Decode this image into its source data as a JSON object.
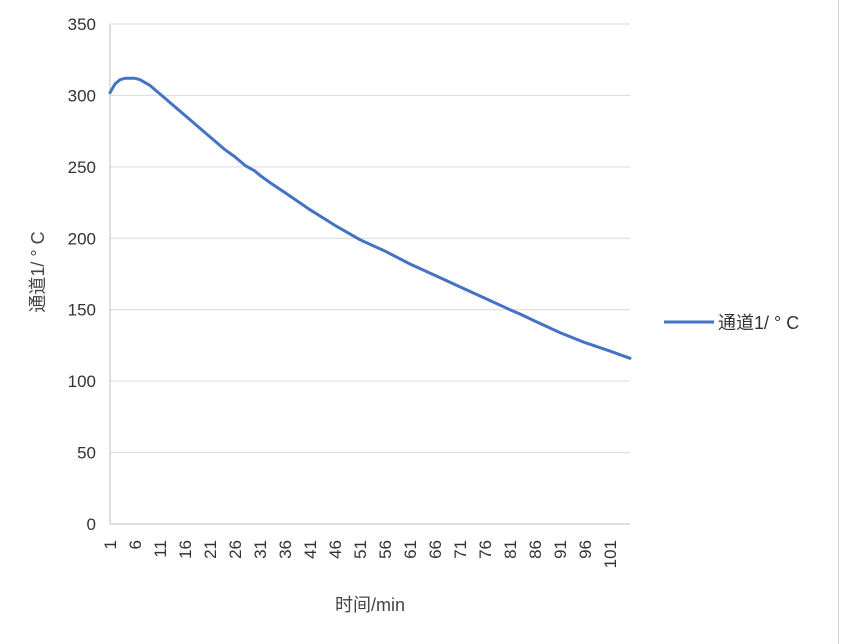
{
  "chart_data": {
    "type": "line",
    "xlabel": "时间/min",
    "ylabel": "通道1/ ° C",
    "ylim": [
      0,
      350
    ],
    "yticks": [
      0,
      50,
      100,
      150,
      200,
      250,
      300,
      350
    ],
    "x_first": 1,
    "x_last": 105,
    "xtick_labels": [
      "1",
      "6",
      "11",
      "16",
      "21",
      "26",
      "31",
      "36",
      "41",
      "46",
      "51",
      "56",
      "61",
      "66",
      "71",
      "76",
      "81",
      "86",
      "91",
      "96",
      "101"
    ],
    "grid": "horizontal",
    "legend_position": "right",
    "series": [
      {
        "name": "通道1/ ° C",
        "color": "#4472C4",
        "points": [
          [
            1,
            302
          ],
          [
            2,
            308
          ],
          [
            3,
            311
          ],
          [
            4,
            312
          ],
          [
            5,
            312
          ],
          [
            6,
            312
          ],
          [
            7,
            311
          ],
          [
            8,
            309
          ],
          [
            9,
            307
          ],
          [
            10,
            304
          ],
          [
            11,
            301
          ],
          [
            12,
            298
          ],
          [
            14,
            292
          ],
          [
            16,
            286
          ],
          [
            18,
            280
          ],
          [
            20,
            274
          ],
          [
            22,
            268
          ],
          [
            24,
            262
          ],
          [
            26,
            257
          ],
          [
            28,
            251
          ],
          [
            30,
            247
          ],
          [
            31,
            244
          ],
          [
            33,
            239
          ],
          [
            36,
            232
          ],
          [
            41,
            220
          ],
          [
            46,
            209
          ],
          [
            51,
            199
          ],
          [
            56,
            191
          ],
          [
            61,
            182
          ],
          [
            66,
            174
          ],
          [
            71,
            166
          ],
          [
            76,
            158
          ],
          [
            81,
            150
          ],
          [
            83,
            147
          ],
          [
            86,
            142
          ],
          [
            91,
            134
          ],
          [
            96,
            127
          ],
          [
            101,
            121
          ],
          [
            105,
            116
          ]
        ]
      }
    ]
  }
}
